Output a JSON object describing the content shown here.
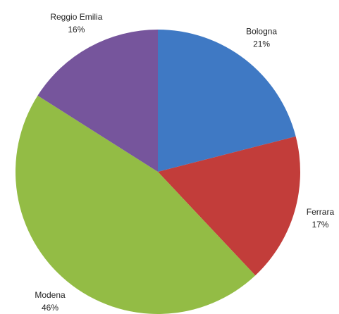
{
  "chart_data": {
    "type": "pie",
    "categories": [
      "Bologna",
      "Ferrara",
      "Modena",
      "Reggio Emilia"
    ],
    "values": [
      21,
      17,
      46,
      16
    ],
    "value_labels": [
      "21%",
      "17%",
      "46%",
      "16%"
    ],
    "colors": [
      "#3f79c4",
      "#c23d3a",
      "#93bc45",
      "#76559c"
    ]
  }
}
